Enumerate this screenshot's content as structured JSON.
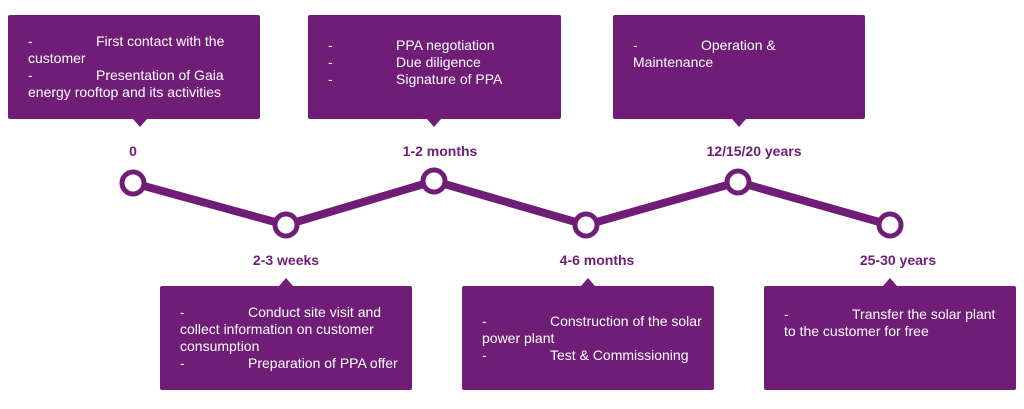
{
  "timeline": {
    "line_color": "#6f1d77",
    "stages": [
      {
        "label": "0",
        "items": [
          "First contact with the customer",
          "Presentation of Gaia energy rooftop and its activities"
        ]
      },
      {
        "label": "2-3 weeks",
        "items": [
          "Conduct site visit and collect information on customer consumption",
          "Preparation of PPA offer"
        ]
      },
      {
        "label": "1-2 months",
        "items": [
          "PPA negotiation",
          "Due diligence",
          "Signature of PPA"
        ]
      },
      {
        "label": "4-6 months",
        "items": [
          "Construction of the solar power plant",
          "Test & Commissioning"
        ]
      },
      {
        "label": "12/15/20 years",
        "items": [
          "Operation & Maintenance"
        ]
      },
      {
        "label": "25-30 years",
        "items": [
          "Transfer the solar plant to the customer for free"
        ]
      }
    ]
  }
}
